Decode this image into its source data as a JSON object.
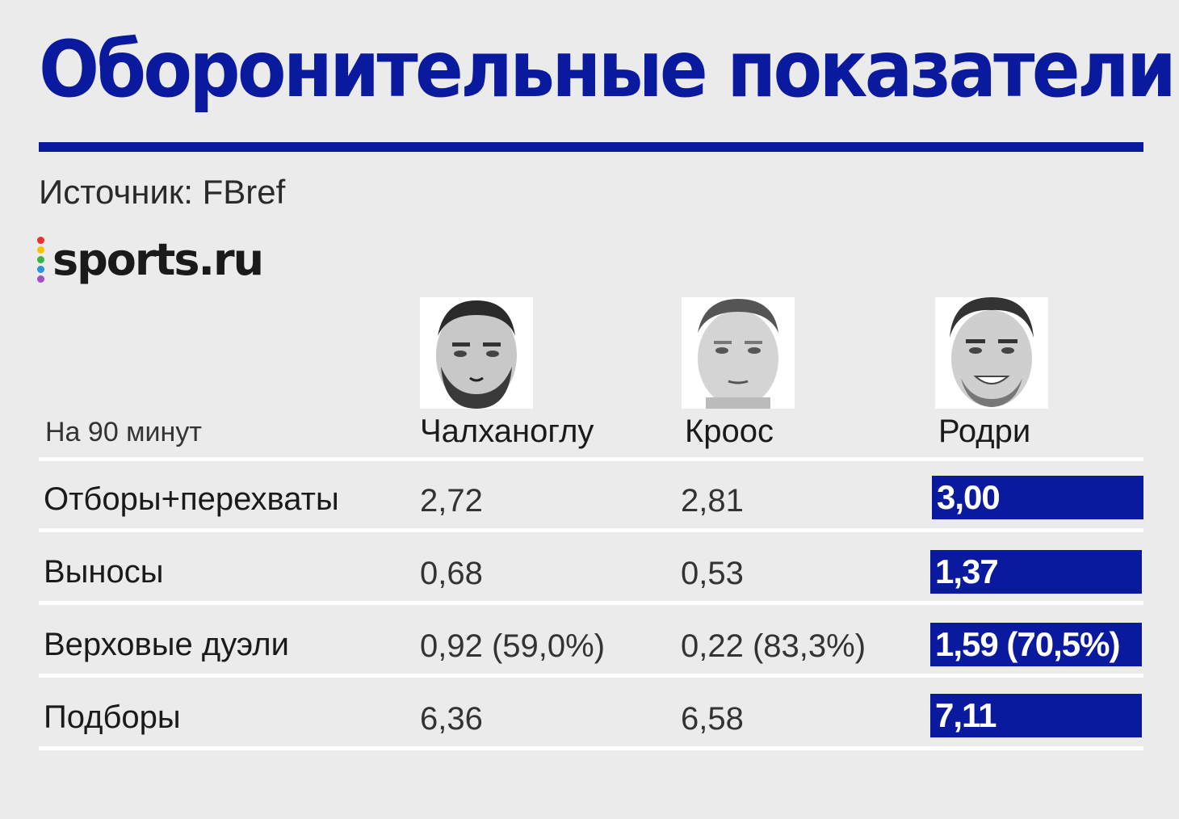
{
  "title": "Оборонительные показатели",
  "source": "Источник: FBref",
  "logo": {
    "text": "sports.ru",
    "dot_colors": [
      "#e8322e",
      "#f5c400",
      "#3cb44a",
      "#2f8fd8",
      "#a34ec2"
    ]
  },
  "colors": {
    "accent": "#0a1a9e",
    "background": "#ebebeb",
    "rule": "#ffffff"
  },
  "chart_data": {
    "type": "table",
    "header_label": "На 90 минут",
    "players": [
      {
        "name": "Чалханоглу",
        "photo": "player-photo"
      },
      {
        "name": "Кроос",
        "photo": "player-photo"
      },
      {
        "name": "Родри",
        "photo": "player-photo"
      }
    ],
    "rows": [
      {
        "label": "Отборы+перехваты",
        "values": [
          "2,72",
          "2,81",
          "3,00"
        ],
        "best_index": 2
      },
      {
        "label": "Выносы",
        "values": [
          "0,68",
          "0,53",
          "1,37"
        ],
        "best_index": 2
      },
      {
        "label": "Верховые дуэли",
        "values": [
          "0,92 (59,0%)",
          "0,22 (83,3%)",
          "1,59 (70,5%)"
        ],
        "best_index": 2
      },
      {
        "label": "Подборы",
        "values": [
          "6,36",
          "6,58",
          "7,11"
        ],
        "best_index": 2
      }
    ]
  }
}
